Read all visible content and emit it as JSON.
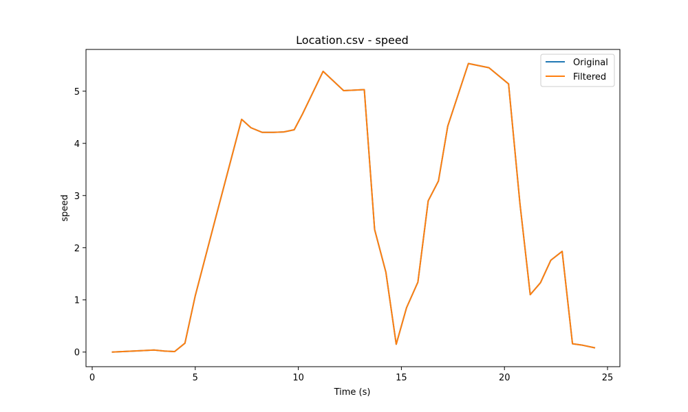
{
  "chart_data": {
    "type": "line",
    "title": "Location.csv - speed",
    "xlabel": "Time (s)",
    "ylabel": "speed",
    "xlim": [
      -0.3,
      25.6
    ],
    "ylim": [
      -0.28,
      5.8
    ],
    "xticks": [
      0,
      5,
      10,
      15,
      20,
      25
    ],
    "yticks": [
      0,
      1,
      2,
      3,
      4,
      5
    ],
    "grid": false,
    "legend": "top-right",
    "x": [
      0.95,
      2.0,
      3.0,
      3.5,
      4.0,
      4.5,
      5.0,
      6.0,
      7.25,
      7.7,
      8.25,
      8.8,
      9.3,
      9.8,
      10.2,
      11.2,
      12.2,
      13.2,
      13.7,
      14.25,
      14.75,
      15.25,
      15.8,
      16.3,
      16.8,
      17.25,
      18.25,
      19.25,
      20.2,
      20.75,
      21.25,
      21.75,
      22.25,
      22.8,
      23.3,
      23.8,
      24.4
    ],
    "series": [
      {
        "name": "Original",
        "color": "#1f77b4",
        "values": [
          0.0,
          0.02,
          0.04,
          0.02,
          0.01,
          0.17,
          1.08,
          2.59,
          4.46,
          4.3,
          4.21,
          4.21,
          4.22,
          4.26,
          4.56,
          5.38,
          5.01,
          5.03,
          2.35,
          1.53,
          0.15,
          0.85,
          1.34,
          2.9,
          3.28,
          4.33,
          5.53,
          5.45,
          5.14,
          2.85,
          1.1,
          1.33,
          1.76,
          1.93,
          0.16,
          0.13,
          0.08
        ]
      },
      {
        "name": "Filtered",
        "color": "#ff7f0e",
        "values": [
          0.0,
          0.02,
          0.04,
          0.02,
          0.01,
          0.17,
          1.08,
          2.59,
          4.46,
          4.3,
          4.21,
          4.21,
          4.22,
          4.26,
          4.56,
          5.38,
          5.01,
          5.03,
          2.35,
          1.53,
          0.15,
          0.85,
          1.34,
          2.9,
          3.28,
          4.33,
          5.53,
          5.45,
          5.14,
          2.85,
          1.1,
          1.33,
          1.76,
          1.93,
          0.16,
          0.13,
          0.08
        ]
      }
    ]
  }
}
